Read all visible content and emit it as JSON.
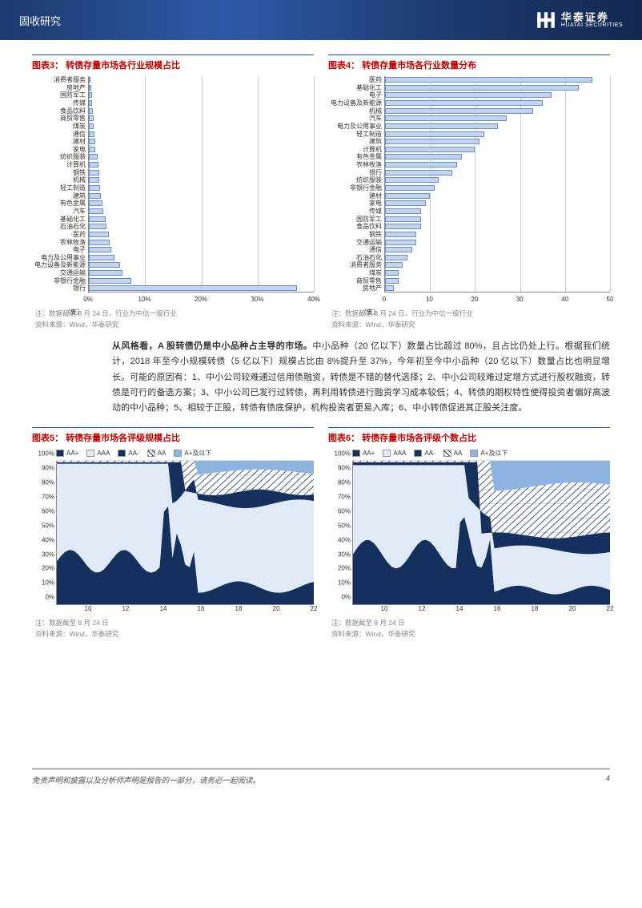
{
  "header": {
    "section": "固收研究",
    "logo_cn": "华泰证券",
    "logo_en": "HUATAI SECURITIES"
  },
  "chart3": {
    "title": "图表3：  转债存量市场各行业规模占比",
    "type": "horizontal_bar",
    "bar_color": "#c5d4ee",
    "bar_border": "#6a8cc7",
    "xlim": [
      0,
      40
    ],
    "xticks": [
      0,
      10,
      20,
      30,
      40
    ],
    "xtick_suffix": "%",
    "x_unit": "（支）",
    "category_fontsize": 8,
    "tick_fontsize": 8,
    "categories": [
      "消费者服务",
      "房地产",
      "国防军工",
      "传媒",
      "食品饮料",
      "商贸零售",
      "煤炭",
      "通信",
      "建材",
      "家电",
      "纺织服装",
      "计算机",
      "钢铁",
      "机械",
      "轻工制造",
      "建筑",
      "有色金属",
      "汽车",
      "基础化工",
      "石油石化",
      "医药",
      "农林牧渔",
      "电子",
      "电力及公用事业",
      "电力设备及新能源",
      "交通运输",
      "非银行金融",
      "银行"
    ],
    "values": [
      0.3,
      0.4,
      0.5,
      0.6,
      0.7,
      0.8,
      0.9,
      1.0,
      1.1,
      1.2,
      1.5,
      1.7,
      1.8,
      1.9,
      2.0,
      2.2,
      2.4,
      2.6,
      3.0,
      3.2,
      3.5,
      3.7,
      4.0,
      4.5,
      5.5,
      6.0,
      7.5,
      37.0
    ],
    "note": "注：数据截至 8 月 24 日，行业为中信一级行业",
    "source": "资料来源：Wind，华泰研究"
  },
  "chart4": {
    "title": "图表4：  转债存量市场各行业数量分布",
    "type": "horizontal_bar",
    "bar_color": "#c5d4ee",
    "bar_border": "#6a8cc7",
    "xlim": [
      0,
      50
    ],
    "xticks": [
      0,
      10,
      20,
      30,
      40,
      50
    ],
    "x_unit": "（支）",
    "category_fontsize": 8,
    "tick_fontsize": 8,
    "categories": [
      "医药",
      "基础化工",
      "电子",
      "电力设备及新能源",
      "机械",
      "汽车",
      "电力及公用事业",
      "轻工制造",
      "建筑",
      "计算机",
      "有色金属",
      "农林牧渔",
      "银行",
      "纺织服装",
      "非银行金融",
      "建材",
      "家电",
      "传媒",
      "国防军工",
      "食品饮料",
      "钢铁",
      "交通运输",
      "通信",
      "石油石化",
      "消费者服务",
      "煤炭",
      "商贸零售",
      "房地产"
    ],
    "values": [
      46,
      43,
      37,
      35,
      33,
      27,
      25,
      22,
      21,
      20,
      17,
      16,
      15,
      12,
      11,
      10,
      9,
      8,
      8,
      8,
      7,
      7,
      6,
      5,
      4,
      3,
      3,
      2
    ],
    "note": "注：数据截至 8 月 24 日，行业为中信一级行业",
    "source": "资料来源：Wind，华泰研究"
  },
  "body_paragraph": "从风格看，A 股转债仍是中小品种占主导的市场。中小品种（20 亿以下）数量占比超过 80%，且占比仍处上行。根据我们统计，2018 年至今小规模转债（5 亿以下）规模占比由 8%提升至 37%，今年初至今中小品种（20 亿以下）数量占比也明显增长。可能的原因有：1、中小公司较难通过信用债融资，转债是不错的替代选择；2、中小公司较难过定增方式进行股权融资，转债是可行的备选方案；3、中小公司已发行过转债，再利用转债进行融资学习成本较低；4、转债的期权特性使得投资者偏好高波动的中小品种；5、相较于正股，转债有债底保护，机构投资者更易入库；6、中小转债促进其正股关注度。",
  "body_bold_prefix": "从风格看，A 股转债仍是中小品种占主导的市场。",
  "chart5": {
    "title": "图表5：  转债存量市场各评级规模占比",
    "type": "stacked_area",
    "ylim": [
      0,
      100
    ],
    "yticks": [
      0,
      10,
      20,
      30,
      40,
      50,
      60,
      70,
      80,
      90,
      100
    ],
    "ytick_suffix": "%",
    "xticks": [
      "10",
      "12",
      "14",
      "16",
      "18",
      "20",
      "22"
    ],
    "legend": [
      {
        "label": "AA+",
        "fill": "#16305e",
        "pattern": "solid"
      },
      {
        "label": "AAA",
        "fill": "#dfeaf6",
        "pattern": "solid"
      },
      {
        "label": "AA-",
        "fill": "#16305e",
        "pattern": "solid"
      },
      {
        "label": "AA",
        "fill": "url(#hatch5)",
        "pattern": "hatch"
      },
      {
        "label": "A+及以下",
        "fill": "#8fb3e0",
        "pattern": "solid"
      }
    ],
    "note": "注：数据截至 8 月 24 日",
    "source": "资料来源：Wind，华泰研究"
  },
  "chart6": {
    "title": "图表6：  转债存量市场各评级个数占比",
    "type": "stacked_area",
    "ylim": [
      0,
      100
    ],
    "yticks": [
      0,
      10,
      20,
      30,
      40,
      50,
      60,
      70,
      80,
      90,
      100
    ],
    "ytick_suffix": "%",
    "xticks": [
      "10",
      "12",
      "14",
      "16",
      "18",
      "20",
      "22"
    ],
    "legend": [
      {
        "label": "AA+",
        "fill": "#16305e",
        "pattern": "solid"
      },
      {
        "label": "AAA",
        "fill": "#dfeaf6",
        "pattern": "solid"
      },
      {
        "label": "AA-",
        "fill": "#16305e",
        "pattern": "solid"
      },
      {
        "label": "AA",
        "fill": "url(#hatch6)",
        "pattern": "hatch"
      },
      {
        "label": "A+及以下",
        "fill": "#8fb3e0",
        "pattern": "solid"
      }
    ],
    "note": "注：数据截至 8 月 24 日",
    "source": "资料来源：Wind，华泰研究"
  },
  "area_colors": {
    "dark": "#16305e",
    "light": "#dfeaf6",
    "mid": "#8fb3e0",
    "grid": "#dddddd"
  },
  "footer": {
    "disclaimer": "免责声明和披露以及分析师声明是报告的一部分，请务必一起阅读。",
    "page": "4"
  }
}
